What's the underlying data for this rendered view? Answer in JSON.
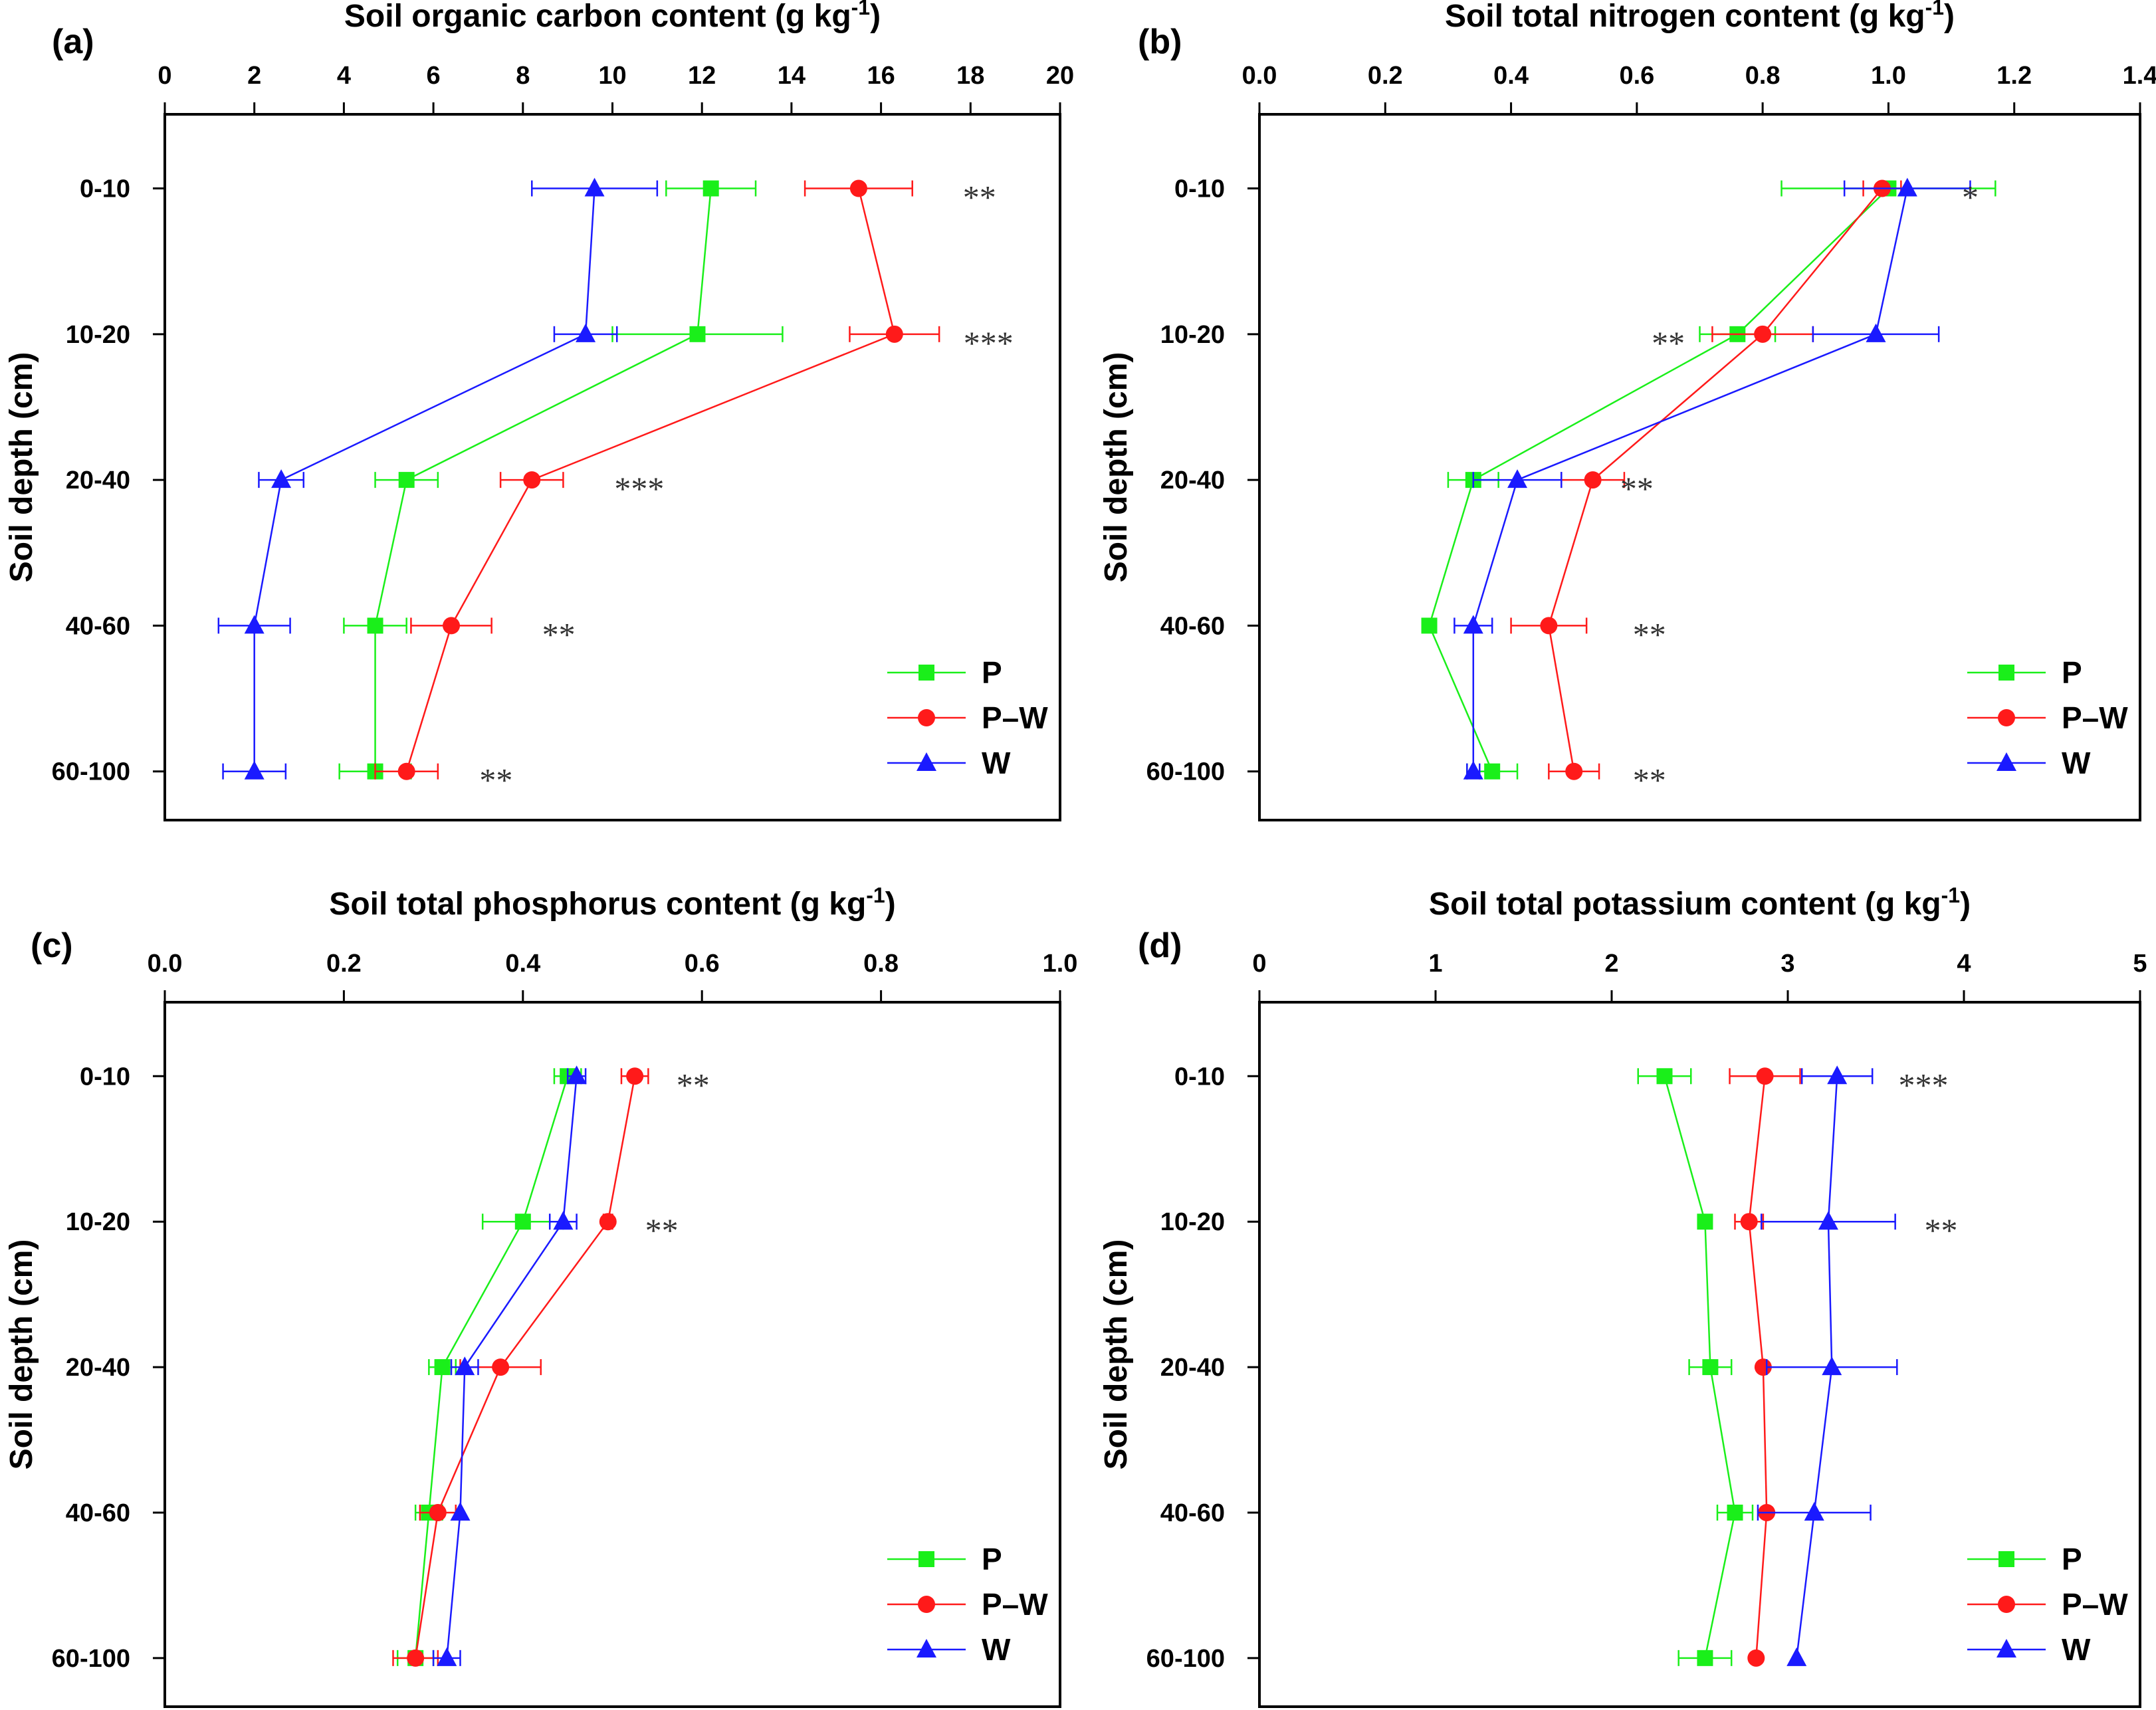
{
  "chart_data": [
    {
      "type": "line",
      "panel": "(a)",
      "title": "Soil organic carbon content (g kg-1)",
      "xlabel": "Soil organic carbon content",
      "xunit": "(g kg",
      "xunit_sup": "-1",
      "xunit_close": ")",
      "ylabel": "Soil depth (cm)",
      "xlim": [
        0,
        20
      ],
      "xticks": [
        "0",
        "2",
        "4",
        "6",
        "8",
        "10",
        "12",
        "14",
        "16",
        "18",
        "20"
      ],
      "categories": [
        "0-10",
        "10-20",
        "20-40",
        "40-60",
        "60-100"
      ],
      "series": [
        {
          "name": "P",
          "values": [
            12.2,
            11.9,
            5.4,
            4.7,
            4.7
          ],
          "errors": [
            1.0,
            1.9,
            0.7,
            0.7,
            0.8
          ]
        },
        {
          "name": "P–W",
          "values": [
            15.5,
            16.3,
            8.2,
            6.4,
            5.4
          ],
          "errors": [
            1.2,
            1.0,
            0.7,
            0.9,
            0.7
          ]
        },
        {
          "name": "W",
          "values": [
            9.6,
            9.4,
            2.6,
            2.0,
            2.0
          ],
          "errors": [
            1.4,
            0.7,
            0.5,
            0.8,
            0.7
          ]
        }
      ],
      "significance": [
        "**",
        "***",
        "***",
        "**",
        "**"
      ],
      "significance_x": [
        18.2,
        18.4,
        10.6,
        8.8,
        7.4
      ],
      "legend": "bottom-right"
    },
    {
      "type": "line",
      "panel": "(b)",
      "title": "Soil total nitrogen content (g kg-1)",
      "xlabel": "Soil total nitrogen content",
      "xunit": "(g kg",
      "xunit_sup": "-1",
      "xunit_close": ")",
      "ylabel": "Soil depth (cm)",
      "xlim": [
        0,
        1.4
      ],
      "xticks": [
        "0.0",
        "0.2",
        "0.4",
        "0.6",
        "0.8",
        "1.0",
        "1.2",
        "1.4"
      ],
      "categories": [
        "0-10",
        "10-20",
        "20-40",
        "40-60",
        "60-100"
      ],
      "series": [
        {
          "name": "P",
          "values": [
            1.0,
            0.76,
            0.34,
            0.27,
            0.37
          ],
          "errors": [
            0.17,
            0.06,
            0.04,
            0.0,
            0.04
          ]
        },
        {
          "name": "P–W",
          "values": [
            0.99,
            0.8,
            0.53,
            0.46,
            0.5
          ],
          "errors": [
            0.03,
            0.08,
            0.05,
            0.06,
            0.04
          ]
        },
        {
          "name": "W",
          "values": [
            1.03,
            0.98,
            0.41,
            0.34,
            0.34
          ],
          "errors": [
            0.1,
            0.1,
            0.07,
            0.03,
            0.01
          ]
        }
      ],
      "significance": [
        "*",
        "**",
        "**",
        "**",
        "**"
      ],
      "significance_x": [
        1.13,
        0.65,
        0.6,
        0.62,
        0.62
      ],
      "legend": "bottom-right"
    },
    {
      "type": "line",
      "panel": "(c)",
      "title": "Soil total phosphorus content (g kg-1)",
      "xlabel": "Soil total phosphorus content",
      "xunit": "(g kg",
      "xunit_sup": "-1",
      "xunit_close": ")",
      "ylabel": "Soil depth (cm)",
      "xlim": [
        0,
        1.0
      ],
      "xticks": [
        "0.0",
        "0.2",
        "0.4",
        "0.6",
        "0.8",
        "1.0"
      ],
      "categories": [
        "0-10",
        "10-20",
        "20-40",
        "40-60",
        "60-100"
      ],
      "series": [
        {
          "name": "P",
          "values": [
            0.45,
            0.4,
            0.31,
            0.295,
            0.28
          ],
          "errors": [
            0.015,
            0.045,
            0.015,
            0.015,
            0.02
          ]
        },
        {
          "name": "P–W",
          "values": [
            0.525,
            0.495,
            0.375,
            0.305,
            0.28
          ],
          "errors": [
            0.015,
            0.005,
            0.045,
            0.02,
            0.025
          ]
        },
        {
          "name": "W",
          "values": [
            0.46,
            0.445,
            0.335,
            0.33,
            0.315
          ],
          "errors": [
            0.01,
            0.015,
            0.015,
            0.0,
            0.015
          ]
        }
      ],
      "significance": [
        "**",
        "**",
        "",
        "",
        ""
      ],
      "significance_x": [
        0.59,
        0.555,
        0,
        0,
        0
      ],
      "legend": "bottom-right"
    },
    {
      "type": "line",
      "panel": "(d)",
      "title": "Soil total potassium content (g kg-1)",
      "xlabel": "Soil total potassium content",
      "xunit": "(g kg",
      "xunit_sup": "-1",
      "xunit_close": ")",
      "ylabel": "Soil depth (cm)",
      "xlim": [
        0,
        5
      ],
      "xticks": [
        "0",
        "1",
        "2",
        "3",
        "4",
        "5"
      ],
      "categories": [
        "0-10",
        "10-20",
        "20-40",
        "40-60",
        "60-100"
      ],
      "series": [
        {
          "name": "P",
          "values": [
            2.3,
            2.53,
            2.56,
            2.7,
            2.53
          ],
          "errors": [
            0.15,
            0.0,
            0.12,
            0.1,
            0.15
          ]
        },
        {
          "name": "P–W",
          "values": [
            2.87,
            2.78,
            2.86,
            2.88,
            2.82
          ],
          "errors": [
            0.2,
            0.08,
            0.0,
            0.0,
            0.0
          ]
        },
        {
          "name": "W",
          "values": [
            3.28,
            3.23,
            3.25,
            3.15,
            3.05
          ],
          "errors": [
            0.2,
            0.38,
            0.37,
            0.32,
            0.0
          ]
        }
      ],
      "significance": [
        "***",
        "**",
        "",
        "",
        ""
      ],
      "significance_x": [
        3.77,
        3.87,
        0,
        0,
        0
      ],
      "legend": "bottom-right"
    }
  ],
  "colors": {
    "P": "#1aef1a",
    "P–W": "#ff1a1a",
    "W": "#1a1aff",
    "axis": "#000000"
  },
  "markers": {
    "P": "square",
    "P–W": "circle",
    "W": "triangle"
  }
}
